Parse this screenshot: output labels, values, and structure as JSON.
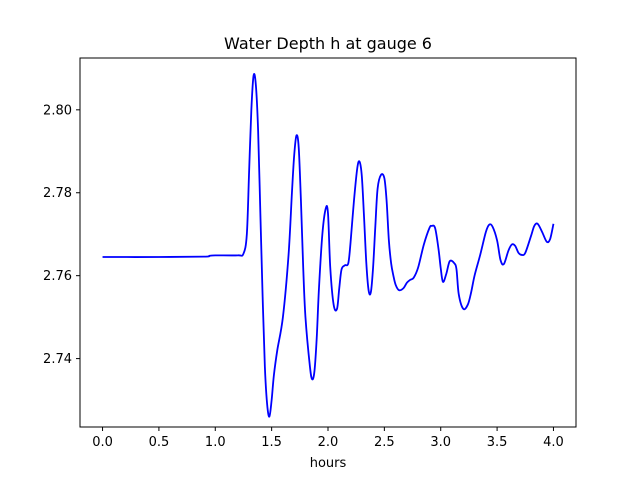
{
  "chart_data": {
    "type": "line",
    "title": "Water Depth h at gauge 6",
    "xlabel": "hours",
    "ylabel": "",
    "xlim": [
      -0.2,
      4.2
    ],
    "ylim": [
      2.7235,
      2.8125
    ],
    "grid": false,
    "x_ticks": [
      0.0,
      0.5,
      1.0,
      1.5,
      2.0,
      2.5,
      3.0,
      3.5,
      4.0
    ],
    "x_tick_labels": [
      "0.0",
      "0.5",
      "1.0",
      "1.5",
      "2.0",
      "2.5",
      "3.0",
      "3.5",
      "4.0"
    ],
    "y_ticks": [
      2.74,
      2.76,
      2.78,
      2.8
    ],
    "y_tick_labels": [
      "2.74",
      "2.76",
      "2.78",
      "2.80"
    ],
    "series": [
      {
        "color": "#0000ff",
        "x": [
          0.0,
          0.5,
          0.9,
          0.95,
          1.0,
          1.2,
          1.25,
          1.28,
          1.3,
          1.32,
          1.34,
          1.36,
          1.38,
          1.4,
          1.42,
          1.44,
          1.46,
          1.48,
          1.5,
          1.52,
          1.55,
          1.6,
          1.65,
          1.68,
          1.7,
          1.72,
          1.74,
          1.76,
          1.78,
          1.8,
          1.84,
          1.86,
          1.88,
          1.9,
          1.92,
          1.95,
          1.98,
          2.0,
          2.02,
          2.05,
          2.08,
          2.1,
          2.12,
          2.15,
          2.18,
          2.2,
          2.23,
          2.26,
          2.28,
          2.3,
          2.32,
          2.34,
          2.36,
          2.38,
          2.4,
          2.42,
          2.44,
          2.47,
          2.5,
          2.52,
          2.54,
          2.56,
          2.58,
          2.6,
          2.63,
          2.67,
          2.7,
          2.73,
          2.76,
          2.8,
          2.85,
          2.9,
          2.92,
          2.95,
          2.98,
          3.0,
          3.02,
          3.05,
          3.08,
          3.12,
          3.14,
          3.16,
          3.2,
          3.24,
          3.27,
          3.3,
          3.35,
          3.4,
          3.43,
          3.46,
          3.5,
          3.53,
          3.56,
          3.6,
          3.63,
          3.66,
          3.69,
          3.72,
          3.75,
          3.8,
          3.83,
          3.86,
          3.9,
          3.94,
          3.97,
          4.0
        ],
        "y": [
          2.7645,
          2.7645,
          2.7646,
          2.7648,
          2.7649,
          2.7649,
          2.7653,
          2.77,
          2.785,
          2.8,
          2.8083,
          2.806,
          2.795,
          2.775,
          2.755,
          2.738,
          2.729,
          2.726,
          2.73,
          2.736,
          2.742,
          2.75,
          2.765,
          2.78,
          2.789,
          2.7938,
          2.791,
          2.778,
          2.762,
          2.75,
          2.738,
          2.735,
          2.737,
          2.745,
          2.757,
          2.77,
          2.7762,
          2.775,
          2.762,
          2.753,
          2.752,
          2.757,
          2.7615,
          2.7625,
          2.763,
          2.768,
          2.778,
          2.786,
          2.7875,
          2.784,
          2.774,
          2.763,
          2.7565,
          2.756,
          2.762,
          2.772,
          2.781,
          2.7843,
          2.7835,
          2.778,
          2.7685,
          2.763,
          2.76,
          2.7578,
          2.7565,
          2.757,
          2.7583,
          2.759,
          2.7595,
          2.762,
          2.7675,
          2.7715,
          2.772,
          2.7715,
          2.7665,
          2.7618,
          2.7585,
          2.7605,
          2.7635,
          2.763,
          2.7615,
          2.7555,
          2.752,
          2.753,
          2.756,
          2.76,
          2.765,
          2.7705,
          2.7723,
          2.7718,
          2.7685,
          2.7638,
          2.7628,
          2.766,
          2.7675,
          2.7672,
          2.7655,
          2.765,
          2.7655,
          2.7695,
          2.772,
          2.7725,
          2.7705,
          2.7682,
          2.7688,
          2.7725
        ]
      }
    ]
  }
}
